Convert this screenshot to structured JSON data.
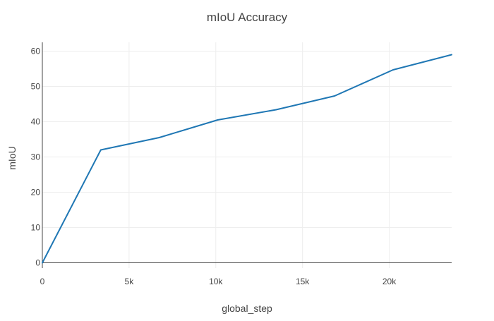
{
  "chart_data": {
    "type": "line",
    "title": "mIoU Accuracy",
    "xlabel": "global_step",
    "ylabel": "mIoU",
    "xlim": [
      0,
      23600
    ],
    "ylim": [
      -1.5,
      62.5
    ],
    "grid": true,
    "legend": "none",
    "x_ticks": [
      0,
      5000,
      10000,
      15000,
      20000
    ],
    "x_tick_labels": [
      "0",
      "5k",
      "10k",
      "15k",
      "20k"
    ],
    "y_ticks": [
      0,
      10,
      20,
      30,
      40,
      50,
      60
    ],
    "y_tick_labels": [
      "0",
      "10",
      "20",
      "30",
      "40",
      "50",
      "60"
    ],
    "series": [
      {
        "color": "#1f77b4",
        "x": [
          0,
          3370,
          6740,
          10110,
          13480,
          16850,
          20220,
          23600
        ],
        "y": [
          0,
          32.0,
          35.5,
          40.5,
          43.4,
          47.3,
          54.7,
          59.0
        ]
      }
    ]
  }
}
